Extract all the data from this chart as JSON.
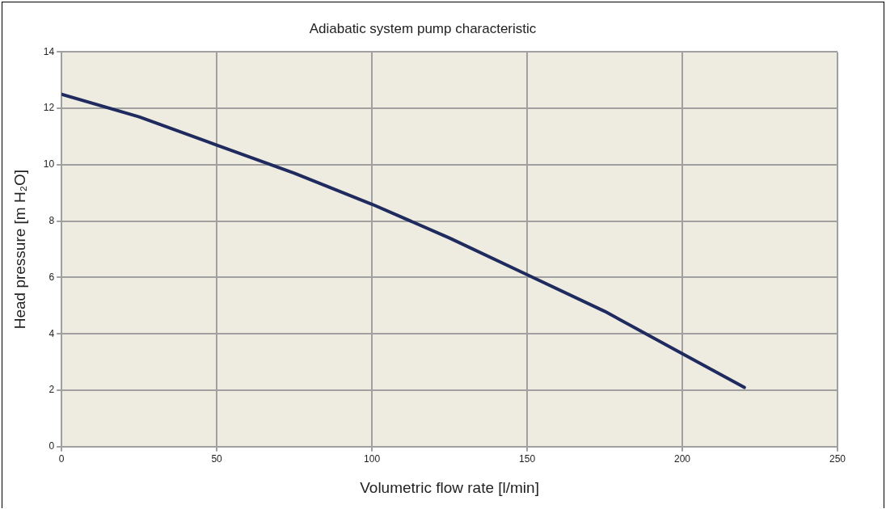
{
  "chart_data": {
    "type": "line",
    "title": "Adiabatic system pump characteristic",
    "xlabel": "Volumetric flow rate [l/min]",
    "ylabel": "Head pressure [m H₂O]",
    "x": [
      0,
      25,
      50,
      75,
      100,
      125,
      150,
      175,
      200,
      220
    ],
    "series": [
      {
        "color": "#1f2a5e",
        "values": [
          12.5,
          11.7,
          10.7,
          9.7,
          8.6,
          7.4,
          6.1,
          4.8,
          3.3,
          2.1
        ]
      }
    ],
    "xlim": [
      0,
      250
    ],
    "xticks": [
      0,
      50,
      100,
      150,
      200,
      250
    ],
    "ylim": [
      0,
      14
    ],
    "yticks": [
      0,
      2,
      4,
      6,
      8,
      10,
      12,
      14
    ],
    "grid": true,
    "legend": false,
    "marker": "none",
    "line_style": "solid"
  }
}
